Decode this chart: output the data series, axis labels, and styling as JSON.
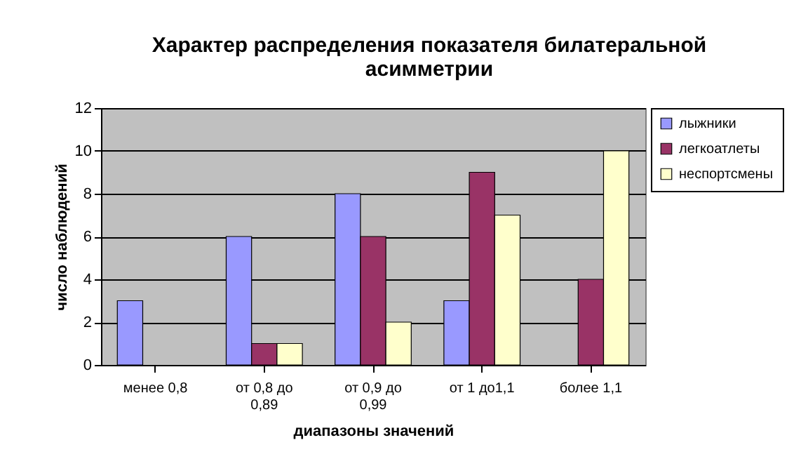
{
  "chart_data": {
    "type": "bar",
    "title": "Характер распределения показателя билатеральной асимметрии",
    "xlabel": "диапазоны значений",
    "ylabel": "число наблюдений",
    "categories": [
      "менее 0,8",
      "от 0,8 до 0,89",
      "от 0,9 до 0,99",
      "от 1 до1,1",
      "более 1,1"
    ],
    "series": [
      {
        "name": "лыжники",
        "color": "#9999ff",
        "values": [
          3,
          6,
          8,
          3,
          null
        ]
      },
      {
        "name": "легкоатлеты",
        "color": "#993366",
        "values": [
          null,
          1,
          6,
          9,
          4
        ]
      },
      {
        "name": "неспортсмены",
        "color": "#ffffcc",
        "values": [
          null,
          1,
          2,
          7,
          10
        ]
      }
    ],
    "ylim": [
      0,
      12
    ],
    "yticks": [
      0,
      2,
      4,
      6,
      8,
      10,
      12
    ],
    "grid": "y",
    "legend": "right"
  }
}
